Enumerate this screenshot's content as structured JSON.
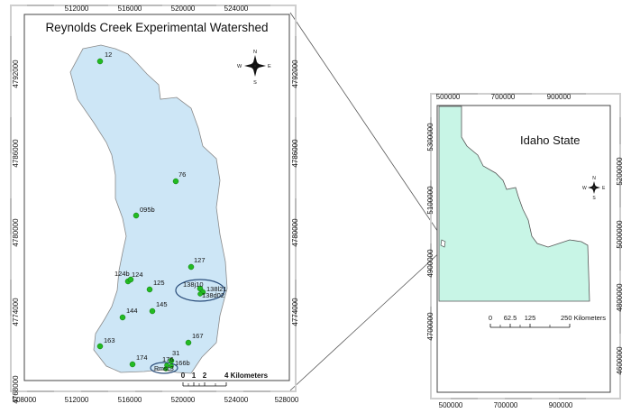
{
  "left_map": {
    "title": "Reynolds Creek Experimental Watershed",
    "x_ticks": [
      "508000",
      "512000",
      "516000",
      "520000",
      "524000",
      "528000"
    ],
    "y_ticks": [
      "4792000",
      "4786000",
      "4780000",
      "4774000",
      "4768000"
    ],
    "stations": [
      {
        "label": "12"
      },
      {
        "label": "76"
      },
      {
        "label": "095b"
      },
      {
        "label": "127"
      },
      {
        "label": "124b"
      },
      {
        "label": "124"
      },
      {
        "label": "125"
      },
      {
        "label": "138j10"
      },
      {
        "label": "138l21"
      },
      {
        "label": "138d02"
      },
      {
        "label": "145"
      },
      {
        "label": "144"
      },
      {
        "label": "163"
      },
      {
        "label": "174"
      },
      {
        "label": "167"
      },
      {
        "label": "31"
      },
      {
        "label": "176"
      },
      {
        "label": "166b"
      },
      {
        "label": "Rmsc3"
      }
    ],
    "scale_bar": {
      "ticks": [
        "0",
        "1",
        "2",
        "4 Kilometers"
      ]
    },
    "north_arrow": {
      "n": "N",
      "s": "S",
      "e": "E",
      "w": "W"
    },
    "colors": {
      "watershed_fill": "#cde6f6",
      "station": "#22bb22",
      "frame": "#444444"
    }
  },
  "right_map": {
    "title": "Idaho State",
    "x_ticks": [
      "500000",
      "700000",
      "900000"
    ],
    "y_ticks_left": [
      "5300000",
      "5100000",
      "4900000",
      "4700000"
    ],
    "y_ticks_right": [
      "5200000",
      "5000000",
      "4800000",
      "4600000"
    ],
    "scale_bar": {
      "ticks": [
        "0",
        "62.5",
        "125",
        "250 Kilometers"
      ]
    },
    "north_arrow": {
      "n": "N",
      "s": "S",
      "e": "E",
      "w": "W"
    },
    "colors": {
      "state_fill": "#c8f5e6"
    }
  }
}
